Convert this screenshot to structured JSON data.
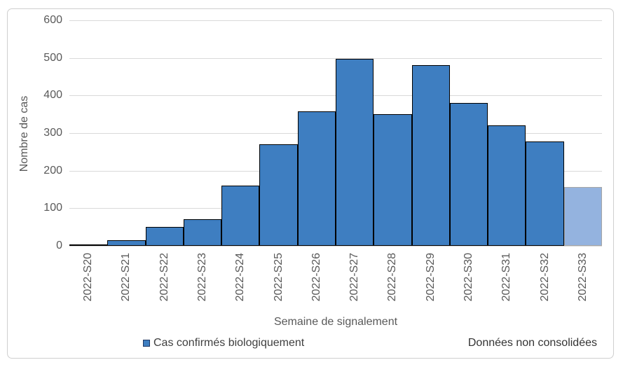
{
  "chart_data": {
    "type": "bar",
    "title": "",
    "xlabel": "Semaine de signalement",
    "ylabel": "Nombre de cas",
    "categories": [
      "2022-S20",
      "2022-S21",
      "2022-S22",
      "2022-S23",
      "2022-S24",
      "2022-S25",
      "2022-S26",
      "2022-S27",
      "2022-S28",
      "2022-S29",
      "2022-S30",
      "2022-S31",
      "2022-S32",
      "2022-S33"
    ],
    "values": [
      2,
      15,
      50,
      70,
      160,
      270,
      358,
      498,
      350,
      481,
      380,
      320,
      277,
      157
    ],
    "ylim": [
      0,
      600
    ],
    "ytick_step": 100,
    "grid": true,
    "bar_gap": 0,
    "legend_position": "bottom-left",
    "legend": [
      {
        "label": "Cas confirmés biologiquement",
        "color": "#3e7ec1"
      }
    ],
    "annotations": [
      {
        "text": "Données non consolidées",
        "position": "bottom-right"
      }
    ],
    "provisional_last_bar": true,
    "colors": {
      "bar_fill": "#3e7ec1",
      "bar_border": "#000000",
      "provisional_fill": "#94b3df",
      "provisional_border": "#a6a6a6",
      "gridline": "#d9d9d9",
      "axis_text": "#595959",
      "note_text": "#333333",
      "frame_border": "#cfcfcf",
      "legend_marker_border": "#1f3864"
    }
  }
}
